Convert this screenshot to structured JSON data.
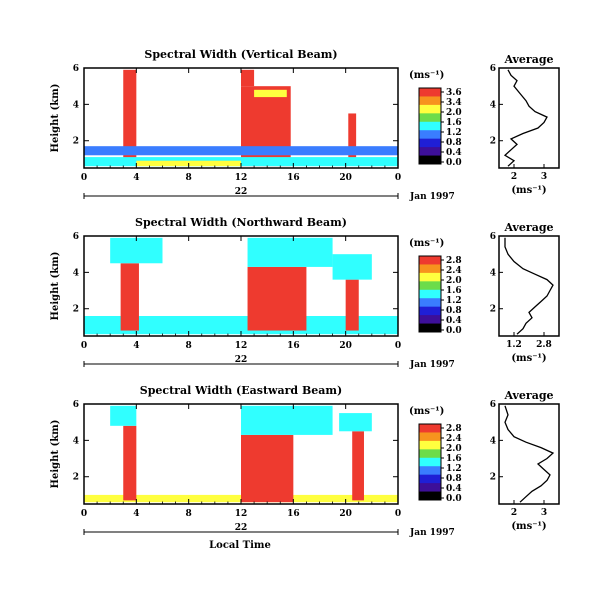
{
  "figure": {
    "date_label": "Jan 1997",
    "day_label": "22",
    "xlabel": "Local Time",
    "ylabel": "Height (km)",
    "colorbar_unit": "(ms⁻¹)",
    "average_title": "Average",
    "average_unit": "(ms⁻¹)",
    "colors": {
      "red": "#ee3a2f",
      "orange": "#f7931e",
      "yellow": "#ffff3f",
      "green": "#6ddc4a",
      "cyan": "#30ffff",
      "blue": "#3a7dff",
      "darkblue": "#1f1fd6",
      "violet": "#3d0f99",
      "black": "#000000",
      "gray": "#bbbbbb"
    }
  },
  "chart_data": [
    {
      "type": "heatmap",
      "title": "Spectral Width (Vertical Beam)",
      "x_ticks": [
        "0",
        "4",
        "8",
        "12",
        "16",
        "20",
        "0"
      ],
      "xlim": [
        0,
        24
      ],
      "y_ticks": [
        "2",
        "4",
        "6"
      ],
      "ylim": [
        0.5,
        6
      ],
      "colorbar_ticks": [
        "3.6",
        "3.4",
        "2.0",
        "1.6",
        "1.2",
        "0.8",
        "0.4",
        "0.0"
      ],
      "regions": [
        {
          "x0": 3.0,
          "x1": 4.0,
          "y0": 0.7,
          "y1": 5.9,
          "color": "red"
        },
        {
          "x0": 12.0,
          "x1": 15.8,
          "y0": 0.6,
          "y1": 5.0,
          "color": "red"
        },
        {
          "x0": 12.0,
          "x1": 13.0,
          "y0": 5.0,
          "y1": 5.9,
          "color": "red"
        },
        {
          "x0": 20.2,
          "x1": 20.8,
          "y0": 0.7,
          "y1": 3.5,
          "color": "red"
        },
        {
          "x0": 0.0,
          "x1": 24.0,
          "y0": 1.2,
          "y1": 1.7,
          "color": "blue"
        },
        {
          "x0": 0.0,
          "x1": 24.0,
          "y0": 0.6,
          "y1": 1.1,
          "color": "cyan"
        },
        {
          "x0": 13.0,
          "x1": 15.5,
          "y0": 4.4,
          "y1": 4.8,
          "color": "yellow"
        },
        {
          "x0": 4.0,
          "x1": 12.0,
          "y0": 0.6,
          "y1": 0.9,
          "color": "yellow"
        }
      ],
      "average": {
        "xlim": [
          1.5,
          3.5
        ],
        "ylim": [
          0.5,
          6
        ],
        "x_ticks": [
          "2",
          "3"
        ],
        "y_ticks": [
          "2",
          "4",
          "6"
        ],
        "x": [
          1.8,
          2.0,
          1.7,
          1.9,
          2.1,
          1.9,
          2.3,
          2.8,
          3.0,
          3.1,
          2.7,
          2.5,
          2.4,
          2.2,
          2.0,
          2.1,
          1.9,
          1.8
        ],
        "y": [
          0.6,
          0.9,
          1.2,
          1.5,
          1.8,
          2.1,
          2.4,
          2.7,
          3.0,
          3.3,
          3.6,
          3.9,
          4.2,
          4.6,
          5.0,
          5.3,
          5.6,
          5.9
        ]
      }
    },
    {
      "type": "heatmap",
      "title": "Spectral Width (Northward Beam)",
      "x_ticks": [
        "0",
        "4",
        "8",
        "12",
        "16",
        "20",
        "0"
      ],
      "xlim": [
        0,
        24
      ],
      "y_ticks": [
        "2",
        "4",
        "6"
      ],
      "ylim": [
        0.5,
        6
      ],
      "colorbar_ticks": [
        "2.8",
        "2.4",
        "2.0",
        "1.6",
        "1.2",
        "0.8",
        "0.4",
        "0.0"
      ],
      "regions": [
        {
          "x0": 0.0,
          "x1": 24.0,
          "y0": 0.6,
          "y1": 1.6,
          "color": "cyan"
        },
        {
          "x0": 2.8,
          "x1": 4.2,
          "y0": 0.8,
          "y1": 4.5,
          "color": "red"
        },
        {
          "x0": 12.5,
          "x1": 17.0,
          "y0": 0.8,
          "y1": 4.3,
          "color": "red"
        },
        {
          "x0": 20.0,
          "x1": 21.0,
          "y0": 0.8,
          "y1": 3.6,
          "color": "red"
        },
        {
          "x0": 12.5,
          "x1": 19.0,
          "y0": 4.3,
          "y1": 5.9,
          "color": "cyan"
        },
        {
          "x0": 2.0,
          "x1": 6.0,
          "y0": 4.5,
          "y1": 5.9,
          "color": "cyan"
        },
        {
          "x0": 19.0,
          "x1": 22.0,
          "y0": 3.6,
          "y1": 5.0,
          "color": "cyan"
        }
      ],
      "average": {
        "xlim": [
          1.0,
          3.0
        ],
        "ylim": [
          0.5,
          6
        ],
        "x_ticks": [
          "1.2",
          "2.8"
        ],
        "y_ticks": [
          "2",
          "4",
          "6"
        ],
        "x": [
          1.6,
          1.8,
          1.9,
          2.1,
          2.0,
          2.2,
          2.4,
          2.6,
          2.7,
          2.8,
          2.6,
          2.2,
          1.8,
          1.5,
          1.3,
          1.2,
          1.2
        ],
        "y": [
          0.6,
          0.9,
          1.2,
          1.5,
          1.8,
          2.1,
          2.4,
          2.7,
          3.0,
          3.3,
          3.6,
          3.9,
          4.2,
          4.6,
          5.0,
          5.4,
          5.9
        ]
      }
    },
    {
      "type": "heatmap",
      "title": "Spectral Width (Eastward Beam)",
      "x_ticks": [
        "0",
        "4",
        "8",
        "12",
        "16",
        "20",
        "0"
      ],
      "xlim": [
        0,
        24
      ],
      "y_ticks": [
        "2",
        "4",
        "6"
      ],
      "ylim": [
        0.5,
        6
      ],
      "colorbar_ticks": [
        "2.8",
        "2.4",
        "2.0",
        "1.6",
        "1.2",
        "0.8",
        "0.4",
        "0.0"
      ],
      "regions": [
        {
          "x0": 0.0,
          "x1": 24.0,
          "y0": 0.6,
          "y1": 1.0,
          "color": "yellow"
        },
        {
          "x0": 3.0,
          "x1": 4.0,
          "y0": 0.7,
          "y1": 4.8,
          "color": "red"
        },
        {
          "x0": 12.0,
          "x1": 16.0,
          "y0": 0.6,
          "y1": 4.3,
          "color": "red"
        },
        {
          "x0": 20.5,
          "x1": 21.4,
          "y0": 0.7,
          "y1": 4.5,
          "color": "red"
        },
        {
          "x0": 12.0,
          "x1": 19.0,
          "y0": 4.3,
          "y1": 5.9,
          "color": "cyan"
        },
        {
          "x0": 2.0,
          "x1": 4.0,
          "y0": 4.8,
          "y1": 5.9,
          "color": "cyan"
        },
        {
          "x0": 19.5,
          "x1": 22.0,
          "y0": 4.5,
          "y1": 5.5,
          "color": "cyan"
        }
      ],
      "average": {
        "xlim": [
          1.3,
          3.3
        ],
        "ylim": [
          0.5,
          6
        ],
        "x_ticks": [
          "2",
          "3"
        ],
        "y_ticks": [
          "2",
          "4",
          "6"
        ],
        "x": [
          2.0,
          2.2,
          2.4,
          2.7,
          2.9,
          3.0,
          2.8,
          2.6,
          2.9,
          3.1,
          2.7,
          2.2,
          1.8,
          1.6,
          1.5,
          1.6,
          1.5
        ],
        "y": [
          0.6,
          0.9,
          1.2,
          1.5,
          1.8,
          2.1,
          2.4,
          2.7,
          3.0,
          3.3,
          3.6,
          3.9,
          4.2,
          4.6,
          5.0,
          5.4,
          5.9
        ]
      }
    }
  ]
}
